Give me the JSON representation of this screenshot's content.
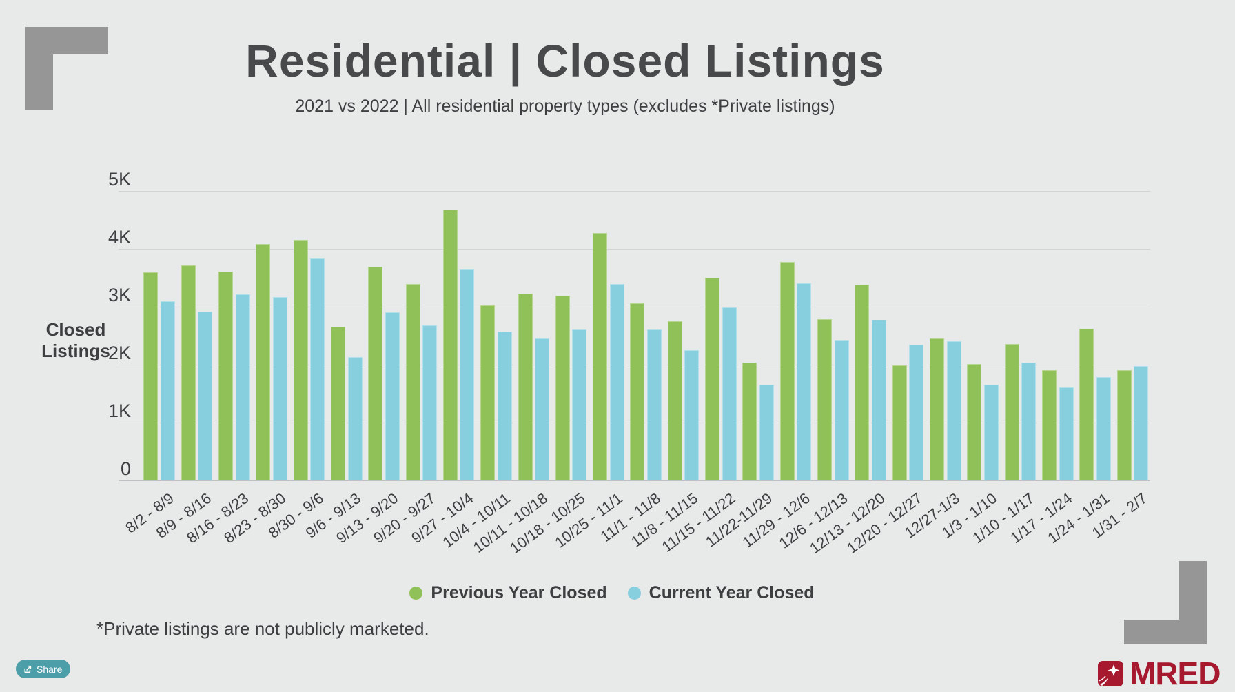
{
  "header": {
    "title": "Residential | Closed Listings",
    "subtitle": "2021 vs 2022 | All residential property types (excludes *Private listings)"
  },
  "chart_data": {
    "type": "bar",
    "title": "Residential | Closed Listings",
    "subtitle": "2021 vs 2022 | All residential property types (excludes *Private listings)",
    "ylabel": "Closed Listings",
    "ylabel_lines": [
      "Closed",
      "Listings"
    ],
    "xlabel": "",
    "ylim": [
      0,
      5000
    ],
    "yticks": [
      "0",
      "1K",
      "2K",
      "3K",
      "4K",
      "5K"
    ],
    "grid": true,
    "legend_position": "bottom",
    "categories": [
      "8/2 - 8/9",
      "8/9 - 8/16",
      "8/16 - 8/23",
      "8/23 - 8/30",
      "8/30 - 9/6",
      "9/6 - 9/13",
      "9/13 - 9/20",
      "9/20 - 9/27",
      "9/27 - 10/4",
      "10/4 - 10/11",
      "10/11 - 10/18",
      "10/18 - 10/25",
      "10/25 - 11/1",
      "11/1 - 11/8",
      "11/8 - 11/15",
      "11/15 - 11/22",
      "11/22-11/29",
      "11/29 - 12/6",
      "12/6 - 12/13",
      "12/13 - 12/20",
      "12/20 - 12/27",
      "12/27-1/3",
      "1/3 - 1/10",
      "1/10 - 1/17",
      "1/17 - 1/24",
      "1/24 - 1/31",
      "1/31 - 2/7"
    ],
    "series": [
      {
        "name": "Previous Year Closed",
        "color": "#90c158",
        "values": [
          3600,
          3720,
          3610,
          4080,
          4160,
          2660,
          3690,
          3390,
          4680,
          3020,
          3230,
          3190,
          4270,
          3060,
          2750,
          3500,
          2040,
          3770,
          2780,
          3380,
          1990,
          2450,
          2010,
          2360,
          1900,
          2620,
          1900
        ]
      },
      {
        "name": "Current Year Closed",
        "color": "#87cedf",
        "values": [
          3100,
          2920,
          3220,
          3170,
          3830,
          2130,
          2900,
          2680,
          3640,
          2570,
          2450,
          2610,
          3390,
          2610,
          2250,
          2990,
          1660,
          3400,
          2420,
          2770,
          2350,
          2400,
          1650,
          2040,
          1610,
          1790,
          1980
        ]
      }
    ]
  },
  "footnote": "*Private listings are not publicly marketed.",
  "share": {
    "label": "Share"
  },
  "brand": {
    "name": "MRED"
  },
  "icons": {
    "share": "share-arrow-icon",
    "brand": "mred-starburst-icon",
    "legend_previous": "green-dot-icon",
    "legend_current": "blue-dot-icon"
  },
  "colors": {
    "previous_year": "#90c158",
    "current_year": "#87cedf",
    "share_button": "#4c9fa9",
    "brand": "#a6192e",
    "bracket": "#969696",
    "background": "#e8e9e9"
  }
}
